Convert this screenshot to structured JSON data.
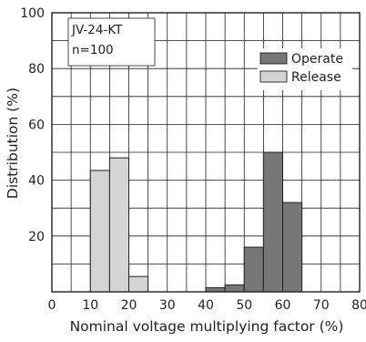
{
  "chart_data": {
    "type": "bar",
    "xlabel": "Nominal voltage multiplying factor (%)",
    "ylabel": "Distribution (%)",
    "xlim": [
      0,
      80
    ],
    "ylim": [
      0,
      100
    ],
    "x_ticks": [
      "0",
      "10",
      "20",
      "30",
      "40",
      "50",
      "60",
      "70",
      "80"
    ],
    "y_ticks": [
      "20",
      "40",
      "60",
      "80",
      "100"
    ],
    "grid": true,
    "bin_width": 5,
    "annotation": [
      "JV-24-KT",
      "n=100"
    ],
    "legend_position": "top-right",
    "series": [
      {
        "name": "Operate",
        "color": "#777777",
        "bins": [
          {
            "from": 40,
            "to": 45,
            "value": 1.5
          },
          {
            "from": 45,
            "to": 50,
            "value": 2.5
          },
          {
            "from": 50,
            "to": 55,
            "value": 16
          },
          {
            "from": 55,
            "to": 60,
            "value": 50
          },
          {
            "from": 60,
            "to": 65,
            "value": 32
          }
        ]
      },
      {
        "name": "Release",
        "color": "#d4d4d4",
        "bins": [
          {
            "from": 10,
            "to": 15,
            "value": 43.5
          },
          {
            "from": 15,
            "to": 20,
            "value": 48
          },
          {
            "from": 20,
            "to": 25,
            "value": 5.5
          }
        ]
      }
    ]
  }
}
